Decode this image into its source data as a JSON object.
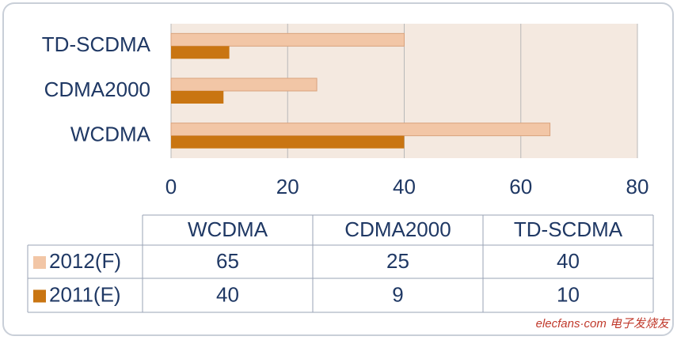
{
  "chart_data": {
    "type": "bar",
    "orientation": "horizontal",
    "categories": [
      "WCDMA",
      "CDMA2000",
      "TD-SCDMA"
    ],
    "series": [
      {
        "name": "2012(F)",
        "color": "#f2c6a6",
        "values": [
          65,
          25,
          40
        ]
      },
      {
        "name": "2011(E)",
        "color": "#c97512",
        "values": [
          40,
          9,
          10
        ]
      }
    ],
    "xlim": [
      0,
      80
    ],
    "xticks": [
      0,
      20,
      40,
      60,
      80
    ],
    "grid": true,
    "data_table": true,
    "watermark": "elecfans·com 电子发烧友"
  }
}
